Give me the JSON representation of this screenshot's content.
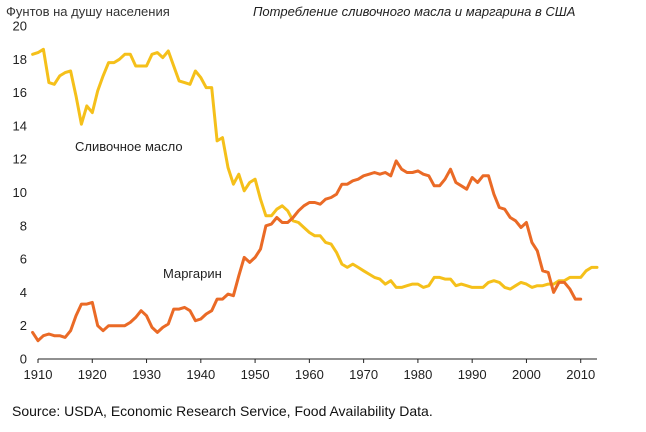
{
  "chart_data": {
    "type": "line",
    "title": "Потребление сливочного масла и маргарина в США",
    "ylabel": "Фунтов на душу населения",
    "xlabel": "",
    "xlim": [
      1910,
      2013
    ],
    "ylim": [
      0,
      20
    ],
    "x_ticks": [
      1910,
      1920,
      1930,
      1940,
      1950,
      1960,
      1970,
      1980,
      1990,
      2000,
      2010
    ],
    "y_ticks": [
      0,
      2,
      4,
      6,
      8,
      10,
      12,
      14,
      16,
      18,
      20
    ],
    "grid": false,
    "series": [
      {
        "name": "Сливочное масло",
        "color": "#f5c01a",
        "points": [
          [
            1909,
            18.3
          ],
          [
            1910,
            18.4
          ],
          [
            1911,
            18.6
          ],
          [
            1912,
            16.6
          ],
          [
            1913,
            16.5
          ],
          [
            1914,
            17.0
          ],
          [
            1915,
            17.2
          ],
          [
            1916,
            17.3
          ],
          [
            1917,
            15.8
          ],
          [
            1918,
            14.1
          ],
          [
            1919,
            15.2
          ],
          [
            1920,
            14.8
          ],
          [
            1921,
            16.1
          ],
          [
            1922,
            17.0
          ],
          [
            1923,
            17.8
          ],
          [
            1924,
            17.8
          ],
          [
            1925,
            18.0
          ],
          [
            1926,
            18.3
          ],
          [
            1927,
            18.3
          ],
          [
            1928,
            17.6
          ],
          [
            1929,
            17.6
          ],
          [
            1930,
            17.6
          ],
          [
            1931,
            18.3
          ],
          [
            1932,
            18.4
          ],
          [
            1933,
            18.1
          ],
          [
            1934,
            18.5
          ],
          [
            1935,
            17.6
          ],
          [
            1936,
            16.7
          ],
          [
            1937,
            16.6
          ],
          [
            1938,
            16.5
          ],
          [
            1939,
            17.3
          ],
          [
            1940,
            16.9
          ],
          [
            1941,
            16.3
          ],
          [
            1942,
            16.3
          ],
          [
            1943,
            13.1
          ],
          [
            1944,
            13.3
          ],
          [
            1945,
            11.5
          ],
          [
            1946,
            10.5
          ],
          [
            1947,
            11.1
          ],
          [
            1948,
            10.1
          ],
          [
            1949,
            10.6
          ],
          [
            1950,
            10.8
          ],
          [
            1951,
            9.6
          ],
          [
            1952,
            8.6
          ],
          [
            1953,
            8.6
          ],
          [
            1954,
            9.0
          ],
          [
            1955,
            9.2
          ],
          [
            1956,
            8.9
          ],
          [
            1957,
            8.3
          ],
          [
            1958,
            8.2
          ],
          [
            1959,
            7.9
          ],
          [
            1960,
            7.6
          ],
          [
            1961,
            7.4
          ],
          [
            1962,
            7.4
          ],
          [
            1963,
            7.0
          ],
          [
            1964,
            6.9
          ],
          [
            1965,
            6.4
          ],
          [
            1966,
            5.7
          ],
          [
            1967,
            5.5
          ],
          [
            1968,
            5.7
          ],
          [
            1969,
            5.5
          ],
          [
            1970,
            5.3
          ],
          [
            1971,
            5.1
          ],
          [
            1972,
            4.9
          ],
          [
            1973,
            4.8
          ],
          [
            1974,
            4.5
          ],
          [
            1975,
            4.7
          ],
          [
            1976,
            4.3
          ],
          [
            1977,
            4.3
          ],
          [
            1978,
            4.4
          ],
          [
            1979,
            4.5
          ],
          [
            1980,
            4.5
          ],
          [
            1981,
            4.3
          ],
          [
            1982,
            4.4
          ],
          [
            1983,
            4.9
          ],
          [
            1984,
            4.9
          ],
          [
            1985,
            4.8
          ],
          [
            1986,
            4.8
          ],
          [
            1987,
            4.4
          ],
          [
            1988,
            4.5
          ],
          [
            1989,
            4.4
          ],
          [
            1990,
            4.3
          ],
          [
            1991,
            4.3
          ],
          [
            1992,
            4.3
          ],
          [
            1993,
            4.6
          ],
          [
            1994,
            4.7
          ],
          [
            1995,
            4.6
          ],
          [
            1996,
            4.3
          ],
          [
            1997,
            4.2
          ],
          [
            1998,
            4.4
          ],
          [
            1999,
            4.6
          ],
          [
            2000,
            4.5
          ],
          [
            2001,
            4.3
          ],
          [
            2002,
            4.4
          ],
          [
            2003,
            4.4
          ],
          [
            2004,
            4.5
          ],
          [
            2005,
            4.5
          ],
          [
            2006,
            4.7
          ],
          [
            2007,
            4.7
          ],
          [
            2008,
            4.9
          ],
          [
            2009,
            4.9
          ],
          [
            2010,
            4.9
          ],
          [
            2011,
            5.3
          ],
          [
            2012,
            5.5
          ],
          [
            2013,
            5.5
          ]
        ]
      },
      {
        "name": "Маргарин",
        "color": "#ea6a26",
        "points": [
          [
            1909,
            1.6
          ],
          [
            1910,
            1.1
          ],
          [
            1911,
            1.4
          ],
          [
            1912,
            1.5
          ],
          [
            1913,
            1.4
          ],
          [
            1914,
            1.4
          ],
          [
            1915,
            1.3
          ],
          [
            1916,
            1.7
          ],
          [
            1917,
            2.6
          ],
          [
            1918,
            3.3
          ],
          [
            1919,
            3.3
          ],
          [
            1920,
            3.4
          ],
          [
            1921,
            2.0
          ],
          [
            1922,
            1.7
          ],
          [
            1923,
            2.0
          ],
          [
            1924,
            2.0
          ],
          [
            1925,
            2.0
          ],
          [
            1926,
            2.0
          ],
          [
            1927,
            2.2
          ],
          [
            1928,
            2.5
          ],
          [
            1929,
            2.9
          ],
          [
            1930,
            2.6
          ],
          [
            1931,
            1.9
          ],
          [
            1932,
            1.6
          ],
          [
            1933,
            1.9
          ],
          [
            1934,
            2.1
          ],
          [
            1935,
            3.0
          ],
          [
            1936,
            3.0
          ],
          [
            1937,
            3.1
          ],
          [
            1938,
            2.9
          ],
          [
            1939,
            2.3
          ],
          [
            1940,
            2.4
          ],
          [
            1941,
            2.7
          ],
          [
            1942,
            2.9
          ],
          [
            1943,
            3.6
          ],
          [
            1944,
            3.6
          ],
          [
            1945,
            3.9
          ],
          [
            1946,
            3.8
          ],
          [
            1947,
            5.0
          ],
          [
            1948,
            6.1
          ],
          [
            1949,
            5.8
          ],
          [
            1950,
            6.1
          ],
          [
            1951,
            6.6
          ],
          [
            1952,
            8.0
          ],
          [
            1953,
            8.1
          ],
          [
            1954,
            8.5
          ],
          [
            1955,
            8.2
          ],
          [
            1956,
            8.2
          ],
          [
            1957,
            8.5
          ],
          [
            1958,
            8.9
          ],
          [
            1959,
            9.2
          ],
          [
            1960,
            9.4
          ],
          [
            1961,
            9.4
          ],
          [
            1962,
            9.3
          ],
          [
            1963,
            9.6
          ],
          [
            1964,
            9.7
          ],
          [
            1965,
            9.9
          ],
          [
            1966,
            10.5
          ],
          [
            1967,
            10.5
          ],
          [
            1968,
            10.7
          ],
          [
            1969,
            10.8
          ],
          [
            1970,
            11.0
          ],
          [
            1971,
            11.1
          ],
          [
            1972,
            11.2
          ],
          [
            1973,
            11.1
          ],
          [
            1974,
            11.2
          ],
          [
            1975,
            11.0
          ],
          [
            1976,
            11.9
          ],
          [
            1977,
            11.4
          ],
          [
            1978,
            11.2
          ],
          [
            1979,
            11.2
          ],
          [
            1980,
            11.3
          ],
          [
            1981,
            11.1
          ],
          [
            1982,
            11.0
          ],
          [
            1983,
            10.4
          ],
          [
            1984,
            10.4
          ],
          [
            1985,
            10.8
          ],
          [
            1986,
            11.4
          ],
          [
            1987,
            10.6
          ],
          [
            1988,
            10.4
          ],
          [
            1989,
            10.2
          ],
          [
            1990,
            10.9
          ],
          [
            1991,
            10.6
          ],
          [
            1992,
            11.0
          ],
          [
            1993,
            11.0
          ],
          [
            1994,
            9.9
          ],
          [
            1995,
            9.1
          ],
          [
            1996,
            9.0
          ],
          [
            1997,
            8.5
          ],
          [
            1998,
            8.3
          ],
          [
            1999,
            7.9
          ],
          [
            2000,
            8.2
          ],
          [
            2001,
            7.0
          ],
          [
            2002,
            6.5
          ],
          [
            2003,
            5.3
          ],
          [
            2004,
            5.2
          ],
          [
            2005,
            4.0
          ],
          [
            2006,
            4.6
          ],
          [
            2007,
            4.6
          ],
          [
            2008,
            4.2
          ],
          [
            2009,
            3.6
          ],
          [
            2010,
            3.6
          ]
        ]
      }
    ],
    "source": "Source: USDA, Economic Research Service, Food Availability Data."
  }
}
